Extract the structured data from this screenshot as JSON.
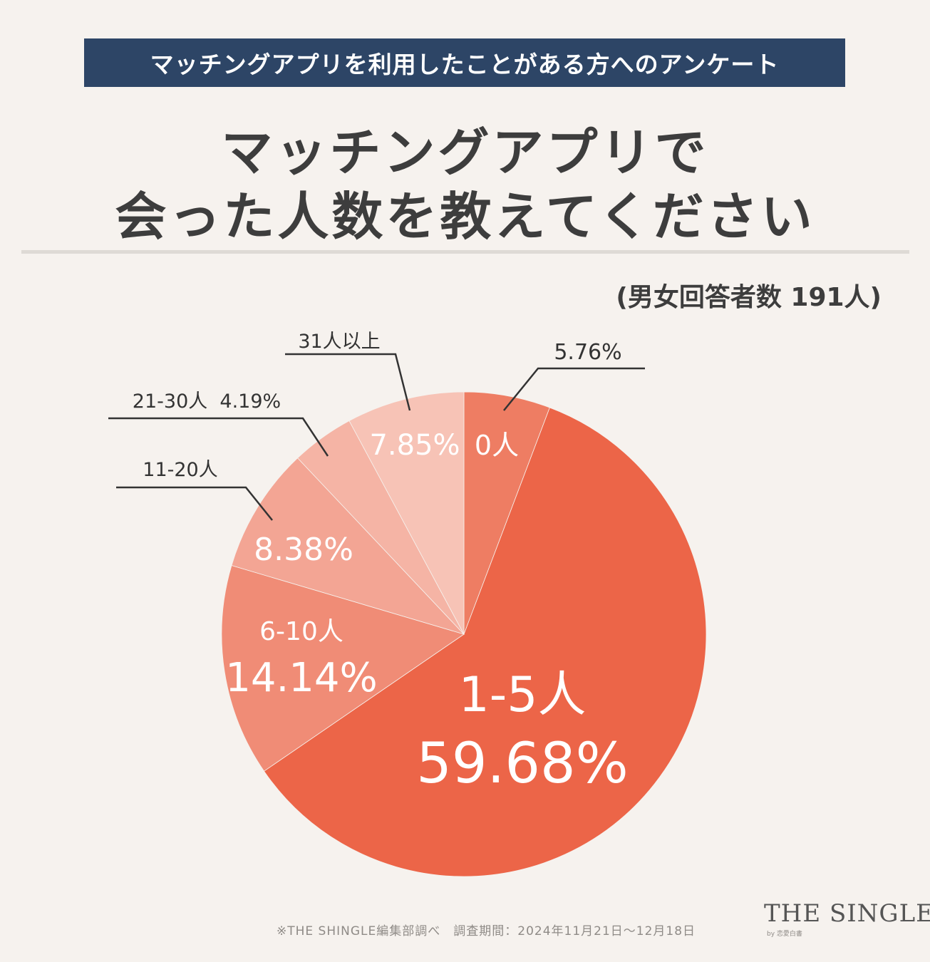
{
  "header": {
    "banner": "マッチングアプリを利用したことがある方へのアンケート",
    "title_line1": "マッチングアプリで",
    "title_line2": "会った人数を教えてください",
    "respondents": "(男女回答者数 191人)"
  },
  "chart_data": {
    "type": "pie",
    "title": "マッチングアプリで会った人数を教えてください",
    "unit": "%",
    "start": "12 o'clock, clockwise",
    "slices": [
      {
        "label": "0人",
        "value": 5.76,
        "value_text": "5.76%",
        "color": "#ee7d63"
      },
      {
        "label": "1-5人",
        "value": 59.68,
        "value_text": "59.68%",
        "color": "#ec6548"
      },
      {
        "label": "6-10人",
        "value": 14.14,
        "value_text": "14.14%",
        "color": "#f08c76"
      },
      {
        "label": "11-20人",
        "value": 8.38,
        "value_text": "8.38%",
        "color": "#f3a594"
      },
      {
        "label": "21-30人",
        "value": 4.19,
        "value_text": "4.19%",
        "color": "#f5b4a5"
      },
      {
        "label": "31人以上",
        "value": 7.85,
        "value_text": "7.85%",
        "color": "#f7c3b6"
      }
    ],
    "callouts": {
      "zero_value": "5.76%",
      "range_21_30": "21-30人  4.19%",
      "range_11_20": "11-20人",
      "over_31": "31人以上"
    }
  },
  "footer": {
    "source": "※THE SHINGLE編集部調べ　調査期間：2024年11月21日～12月18日",
    "logo": "THE SINGLE",
    "logo_sub": "by 恋愛白書"
  },
  "colors": {
    "banner_bg": "#2d4566",
    "background": "#f6f2ee",
    "text": "#3d3d3d"
  }
}
